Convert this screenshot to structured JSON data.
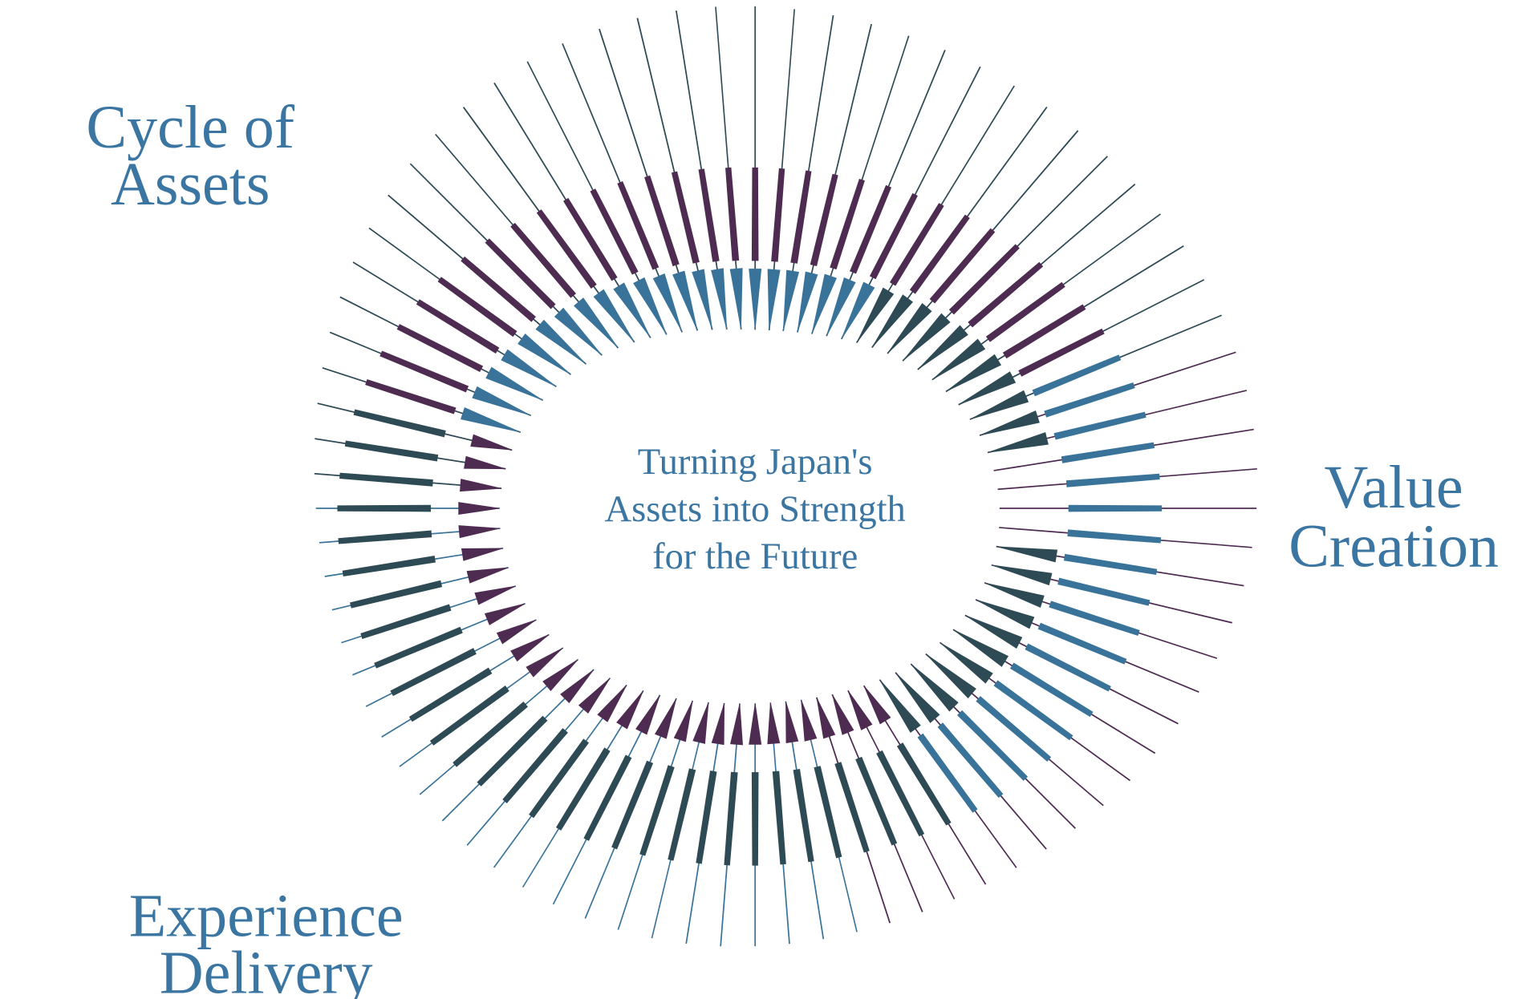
{
  "center_title": {
    "lines": [
      "Turning Japan's",
      "Assets into Strength",
      "for the Future"
    ]
  },
  "labels": {
    "cycle_of_assets": [
      "Cycle of",
      "Assets"
    ],
    "value_creation": [
      "Value",
      "Creation"
    ],
    "experience_delivery": [
      "Experience",
      "Delivery"
    ]
  },
  "colors": {
    "text": "#3b76a2",
    "purple": "#4e2c52",
    "dark_teal": "#2e4a55",
    "blue": "#3a7399",
    "background": "#ffffff"
  }
}
